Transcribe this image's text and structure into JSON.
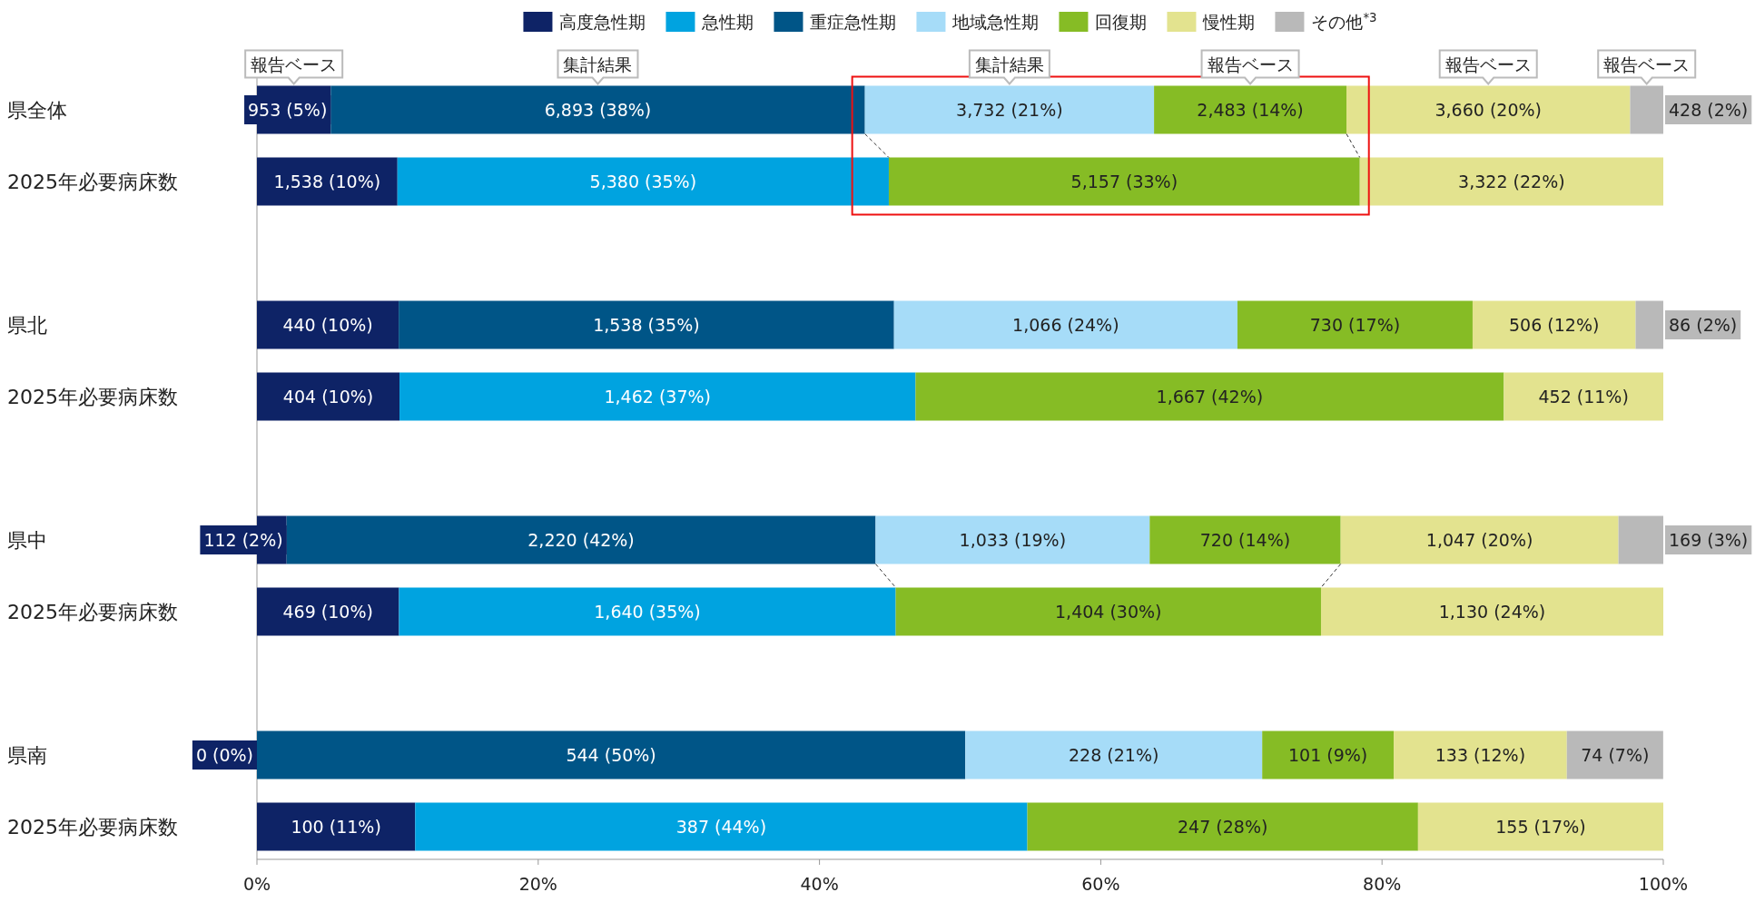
{
  "chart_data": {
    "type": "bar",
    "orientation": "horizontal",
    "stacked": true,
    "legend": "top",
    "grid": false,
    "categories": [
      "県全体",
      "2025年必要病床数",
      null,
      "県北",
      "2025年必要病床数",
      null,
      "県中",
      "2025年必要病床数",
      null,
      "県南",
      "2025年必要病床数"
    ],
    "xlim": [
      0,
      100
    ],
    "xticks": [
      {
        "value": 0,
        "label": "0%"
      },
      {
        "value": 20,
        "label": "20%"
      },
      {
        "value": 40,
        "label": "40%"
      },
      {
        "value": 60,
        "label": "60%"
      },
      {
        "value": 80,
        "label": "80%"
      },
      {
        "value": 100,
        "label": "100%"
      }
    ],
    "series": [
      {
        "name": "高度急性期",
        "color": "#0e2366",
        "values": [
          5.25,
          9.99,
          null,
          10.08,
          10.14,
          null,
          2.11,
          10.1,
          null,
          0,
          11.25
        ],
        "value_labels": [
          "953 (5%)",
          "1,538 (10%)",
          null,
          "440 (10%)",
          "404 (10%)",
          null,
          "112 (2%)",
          "469 (10%)",
          null,
          "0 (0%)",
          "100 (11%)"
        ]
      },
      {
        "name": "急性期",
        "color": "#00a3e0",
        "values": [
          null,
          34.94,
          null,
          null,
          36.69,
          null,
          null,
          35.32,
          null,
          null,
          43.53
        ],
        "value_labels": [
          null,
          "5,380 (35%)",
          null,
          null,
          "1,462 (37%)",
          null,
          null,
          "1,640 (35%)",
          null,
          null,
          "387 (44%)"
        ]
      },
      {
        "name": "重症急性期",
        "color": "#005587",
        "values": [
          37.98,
          null,
          null,
          35.22,
          null,
          null,
          41.88,
          null,
          null,
          50.37,
          null
        ],
        "value_labels": [
          "6,893 (38%)",
          null,
          null,
          "1,538 (35%)",
          null,
          null,
          "2,220 (42%)",
          null,
          null,
          "544 (50%)",
          null
        ]
      },
      {
        "name": "地域急性期",
        "color": "#a6dcf8",
        "values": [
          20.56,
          null,
          null,
          24.42,
          null,
          null,
          19.49,
          null,
          null,
          21.11,
          null
        ],
        "value_labels": [
          "3,732 (21%)",
          null,
          null,
          "1,066 (24%)",
          null,
          null,
          "1,033 (19%)",
          null,
          null,
          "228 (21%)",
          null
        ]
      },
      {
        "name": "回復期",
        "color": "#86bc25",
        "values": [
          13.68,
          33.49,
          null,
          16.72,
          41.83,
          null,
          13.58,
          30.24,
          null,
          9.35,
          27.78
        ],
        "value_labels": [
          "2,483 (14%)",
          "5,157 (33%)",
          null,
          "730 (17%)",
          "1,667 (42%)",
          null,
          "720 (14%)",
          "1,404 (30%)",
          null,
          "101 (9%)",
          "247 (28%)"
        ]
      },
      {
        "name": "慢性期",
        "color": "#e3e38f",
        "values": [
          20.17,
          21.58,
          null,
          11.59,
          11.34,
          null,
          19.75,
          24.34,
          null,
          12.31,
          17.44
        ],
        "value_labels": [
          "3,660 (20%)",
          "3,322 (22%)",
          null,
          "506 (12%)",
          "452 (11%)",
          null,
          "1,047 (20%)",
          "1,130 (24%)",
          null,
          "133 (12%)",
          "155 (17%)"
        ]
      },
      {
        "name": "その他$^{*3}$",
        "color": "#b9b9b9",
        "values": [
          2.36,
          null,
          null,
          1.97,
          null,
          null,
          3.19,
          null,
          null,
          6.85,
          null
        ],
        "value_labels": [
          "428 (2%)",
          null,
          null,
          "86 (2%)",
          null,
          null,
          "169 (3%)",
          null,
          null,
          "74 (7%)",
          null
        ]
      }
    ],
    "annotations": [
      "報告ベース",
      "集計結果",
      "集計結果",
      "報告ベース",
      "報告ベース",
      "報告ベース"
    ]
  }
}
